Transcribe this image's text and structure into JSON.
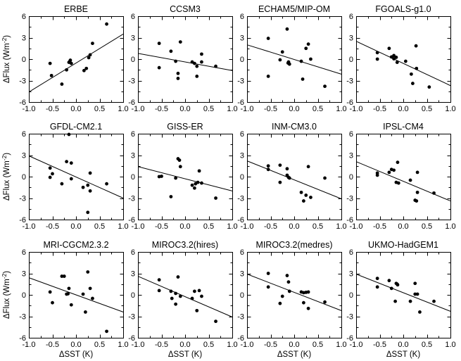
{
  "figure": {
    "background": "#ffffff",
    "foreground": "#000000",
    "marker_color": "#000000",
    "line_color": "#000000"
  },
  "axes": {
    "xlabel": "ΔSST (K)",
    "ylabel_prefix": "ΔFlux (Wm",
    "ylabel_sup": "-2",
    "ylabel_suffix": ")",
    "xlim": [
      -1.0,
      1.0
    ],
    "ylim": [
      -6,
      6
    ],
    "xticks": [
      -1.0,
      -0.5,
      0.0,
      0.5,
      1.0
    ],
    "xtick_labels": [
      "-1.0",
      "-0.5",
      "0.0",
      "0.5",
      "1.0"
    ],
    "yticks": [
      -6,
      -3,
      0,
      3,
      6
    ],
    "ytick_labels": [
      "-6",
      "-3",
      "0",
      "3",
      "6"
    ],
    "x_minor_ticks": [
      -0.75,
      -0.25,
      0.25,
      0.75
    ],
    "y_minor_ticks": [
      -4.5,
      -1.5,
      1.5,
      4.5
    ],
    "grid": false,
    "legend": "none"
  },
  "chart_data": [
    {
      "type": "scatter",
      "title": "ERBE",
      "points": [
        [
          -0.55,
          -0.6
        ],
        [
          -0.52,
          -2.3
        ],
        [
          -0.3,
          -3.5
        ],
        [
          -0.2,
          -1.5
        ],
        [
          -0.15,
          -0.45
        ],
        [
          -0.13,
          -0.3
        ],
        [
          -0.12,
          -0.15
        ],
        [
          -0.1,
          -0.6
        ],
        [
          0.17,
          -1.6
        ],
        [
          0.22,
          -1.3
        ],
        [
          0.27,
          0.2
        ],
        [
          0.3,
          0.6
        ],
        [
          0.35,
          2.2
        ],
        [
          0.65,
          4.9
        ]
      ],
      "fit_line": {
        "x1": -1.0,
        "y1": -4.6,
        "x2": 1.0,
        "y2": 3.5
      }
    },
    {
      "type": "scatter",
      "title": "CCSM3",
      "points": [
        [
          -0.55,
          2.2
        ],
        [
          -0.55,
          -1.2
        ],
        [
          -0.3,
          1.1
        ],
        [
          -0.2,
          -0.3
        ],
        [
          -0.15,
          -2.0
        ],
        [
          -0.15,
          -2.7
        ],
        [
          -0.1,
          2.4
        ],
        [
          0.15,
          -0.4
        ],
        [
          0.2,
          -0.6
        ],
        [
          0.25,
          -1.0
        ],
        [
          0.25,
          -2.4
        ],
        [
          0.35,
          0.7
        ],
        [
          0.35,
          -0.4
        ],
        [
          0.65,
          -1.0
        ]
      ],
      "fit_line": {
        "x1": -1.0,
        "y1": 0.8,
        "x2": 1.0,
        "y2": -1.6
      }
    },
    {
      "type": "scatter",
      "title": "ECHAM5/MIP-OM",
      "points": [
        [
          -0.55,
          2.9
        ],
        [
          -0.55,
          -2.4
        ],
        [
          -0.3,
          -0.1
        ],
        [
          -0.25,
          1.0
        ],
        [
          -0.15,
          4.2
        ],
        [
          -0.13,
          -0.55
        ],
        [
          -0.12,
          -0.4
        ],
        [
          -0.1,
          -0.7
        ],
        [
          0.15,
          -0.3
        ],
        [
          0.18,
          -2.8
        ],
        [
          0.25,
          1.5
        ],
        [
          0.3,
          2.1
        ],
        [
          0.35,
          0.0
        ],
        [
          0.65,
          -3.8
        ]
      ],
      "fit_line": {
        "x1": -1.0,
        "y1": 2.0,
        "x2": 1.0,
        "y2": -2.1
      }
    },
    {
      "type": "scatter",
      "title": "FGOALS-g1.0",
      "points": [
        [
          -0.55,
          0.9
        ],
        [
          -0.55,
          0.0
        ],
        [
          -0.3,
          1.5
        ],
        [
          -0.25,
          0.3
        ],
        [
          -0.2,
          0.5
        ],
        [
          -0.2,
          0.05
        ],
        [
          -0.15,
          0.25
        ],
        [
          -0.13,
          -0.45
        ],
        [
          0.05,
          -0.3
        ],
        [
          0.17,
          -2.1
        ],
        [
          0.2,
          -3.4
        ],
        [
          0.27,
          1.85
        ],
        [
          0.28,
          -1.3
        ],
        [
          0.55,
          -3.9
        ]
      ],
      "fit_line": {
        "x1": -1.0,
        "y1": 2.5,
        "x2": 1.0,
        "y2": -3.7
      }
    },
    {
      "type": "scatter",
      "title": "GFDL-CM2.1",
      "points": [
        [
          -0.15,
          5.9
        ],
        [
          -0.55,
          1.2
        ],
        [
          -0.5,
          0.4
        ],
        [
          -0.55,
          -0.1
        ],
        [
          -0.3,
          -1.0
        ],
        [
          -0.2,
          2.1
        ],
        [
          -0.1,
          1.9
        ],
        [
          -0.1,
          -0.3
        ],
        [
          0.15,
          -1.5
        ],
        [
          0.25,
          -1.2
        ],
        [
          0.3,
          0.5
        ],
        [
          0.3,
          -2.0
        ],
        [
          0.25,
          -5.0
        ],
        [
          0.65,
          -1.0
        ]
      ],
      "fit_line": {
        "x1": -1.0,
        "y1": 2.9,
        "x2": 1.0,
        "y2": -3.0
      }
    },
    {
      "type": "scatter",
      "title": "GISS-ER",
      "points": [
        [
          -0.55,
          0.0
        ],
        [
          -0.5,
          0.05
        ],
        [
          -0.3,
          -2.8
        ],
        [
          -0.2,
          -0.2
        ],
        [
          -0.15,
          2.5
        ],
        [
          -0.12,
          2.3
        ],
        [
          -0.1,
          1.4
        ],
        [
          0.15,
          -1.2
        ],
        [
          0.2,
          -1.6
        ],
        [
          0.22,
          -1.0
        ],
        [
          0.27,
          -0.8
        ],
        [
          0.3,
          0.8
        ],
        [
          0.35,
          -0.9
        ],
        [
          0.65,
          -3.0
        ]
      ],
      "fit_line": {
        "x1": -1.0,
        "y1": 1.4,
        "x2": 1.0,
        "y2": -2.0
      }
    },
    {
      "type": "scatter",
      "title": "INM-CM3.0",
      "points": [
        [
          -0.55,
          1.5
        ],
        [
          -0.55,
          1.0
        ],
        [
          -0.3,
          1.6
        ],
        [
          -0.3,
          -0.8
        ],
        [
          -0.15,
          1.1
        ],
        [
          -0.15,
          0.2
        ],
        [
          -0.12,
          -0.1
        ],
        [
          -0.1,
          -0.2
        ],
        [
          0.15,
          -2.2
        ],
        [
          0.2,
          -3.4
        ],
        [
          0.25,
          -2.6
        ],
        [
          0.3,
          1.4
        ],
        [
          0.35,
          -2.9
        ],
        [
          0.65,
          -0.2
        ]
      ],
      "fit_line": {
        "x1": -1.0,
        "y1": 2.2,
        "x2": 1.0,
        "y2": -3.1
      }
    },
    {
      "type": "scatter",
      "title": "IPSL-CM4",
      "points": [
        [
          -0.55,
          0.5
        ],
        [
          -0.55,
          0.2
        ],
        [
          -0.3,
          0.6
        ],
        [
          -0.25,
          1.0
        ],
        [
          -0.2,
          0.9
        ],
        [
          -0.12,
          2.0
        ],
        [
          -0.15,
          -0.8
        ],
        [
          -0.1,
          -0.9
        ],
        [
          0.15,
          -0.5
        ],
        [
          0.25,
          -3.3
        ],
        [
          0.28,
          -3.4
        ],
        [
          0.3,
          0.6
        ],
        [
          0.3,
          -2.2
        ],
        [
          0.65,
          -2.3
        ]
      ],
      "fit_line": {
        "x1": -1.0,
        "y1": 2.1,
        "x2": 1.0,
        "y2": -3.4
      }
    },
    {
      "type": "scatter",
      "title": "MRI-CGCM2.3.2",
      "points": [
        [
          -0.55,
          0.4
        ],
        [
          -0.5,
          -1.1
        ],
        [
          -0.3,
          2.6
        ],
        [
          -0.25,
          2.6
        ],
        [
          -0.2,
          0.1
        ],
        [
          -0.17,
          0.15
        ],
        [
          -0.15,
          0.9
        ],
        [
          -0.1,
          -1.4
        ],
        [
          0.15,
          0.1
        ],
        [
          0.2,
          -2.4
        ],
        [
          0.25,
          3.2
        ],
        [
          0.3,
          0.9
        ],
        [
          0.35,
          -0.5
        ],
        [
          0.65,
          -5.1
        ]
      ],
      "fit_line": {
        "x1": -1.0,
        "y1": 2.4,
        "x2": 1.0,
        "y2": -2.4
      }
    },
    {
      "type": "scatter",
      "title": "MIROC3.2(hires)",
      "points": [
        [
          -0.55,
          2.1
        ],
        [
          -0.55,
          0.6
        ],
        [
          -0.3,
          0.5
        ],
        [
          -0.28,
          -0.5
        ],
        [
          -0.2,
          0.2
        ],
        [
          -0.2,
          -1.3
        ],
        [
          -0.15,
          2.5
        ],
        [
          -0.1,
          -0.2
        ],
        [
          0.15,
          -0.5
        ],
        [
          0.2,
          0.5
        ],
        [
          0.25,
          -2.2
        ],
        [
          0.3,
          0.6
        ],
        [
          0.35,
          -0.2
        ],
        [
          0.65,
          -3.7
        ]
      ],
      "fit_line": {
        "x1": -1.0,
        "y1": 2.6,
        "x2": 1.0,
        "y2": -3.1
      }
    },
    {
      "type": "scatter",
      "title": "MIROC3.2(medres)",
      "points": [
        [
          -0.55,
          3.0
        ],
        [
          -0.55,
          1.1
        ],
        [
          -0.3,
          -1.2
        ],
        [
          -0.25,
          -0.2
        ],
        [
          -0.15,
          2.7
        ],
        [
          -0.12,
          1.8
        ],
        [
          -0.1,
          0.5
        ],
        [
          0.15,
          0.4
        ],
        [
          0.2,
          0.3
        ],
        [
          0.2,
          -1.1
        ],
        [
          0.25,
          0.35
        ],
        [
          0.3,
          0.4
        ],
        [
          0.3,
          -1.9
        ],
        [
          0.65,
          -1.0
        ]
      ],
      "fit_line": {
        "x1": -1.0,
        "y1": 2.9,
        "x2": 1.0,
        "y2": -2.2
      }
    },
    {
      "type": "scatter",
      "title": "UKMO-HadGEM1",
      "points": [
        [
          -0.55,
          2.3
        ],
        [
          -0.55,
          1.1
        ],
        [
          -0.3,
          2.0
        ],
        [
          -0.25,
          0.9
        ],
        [
          -0.17,
          -0.9
        ],
        [
          -0.15,
          1.6
        ],
        [
          -0.13,
          1.5
        ],
        [
          -0.12,
          1.4
        ],
        [
          0.15,
          -0.9
        ],
        [
          0.25,
          0.1
        ],
        [
          0.25,
          1.6
        ],
        [
          0.3,
          0.1
        ],
        [
          0.35,
          -2.4
        ],
        [
          0.65,
          -0.9
        ]
      ],
      "fit_line": {
        "x1": -1.0,
        "y1": 2.9,
        "x2": 1.0,
        "y2": -2.3
      }
    }
  ]
}
